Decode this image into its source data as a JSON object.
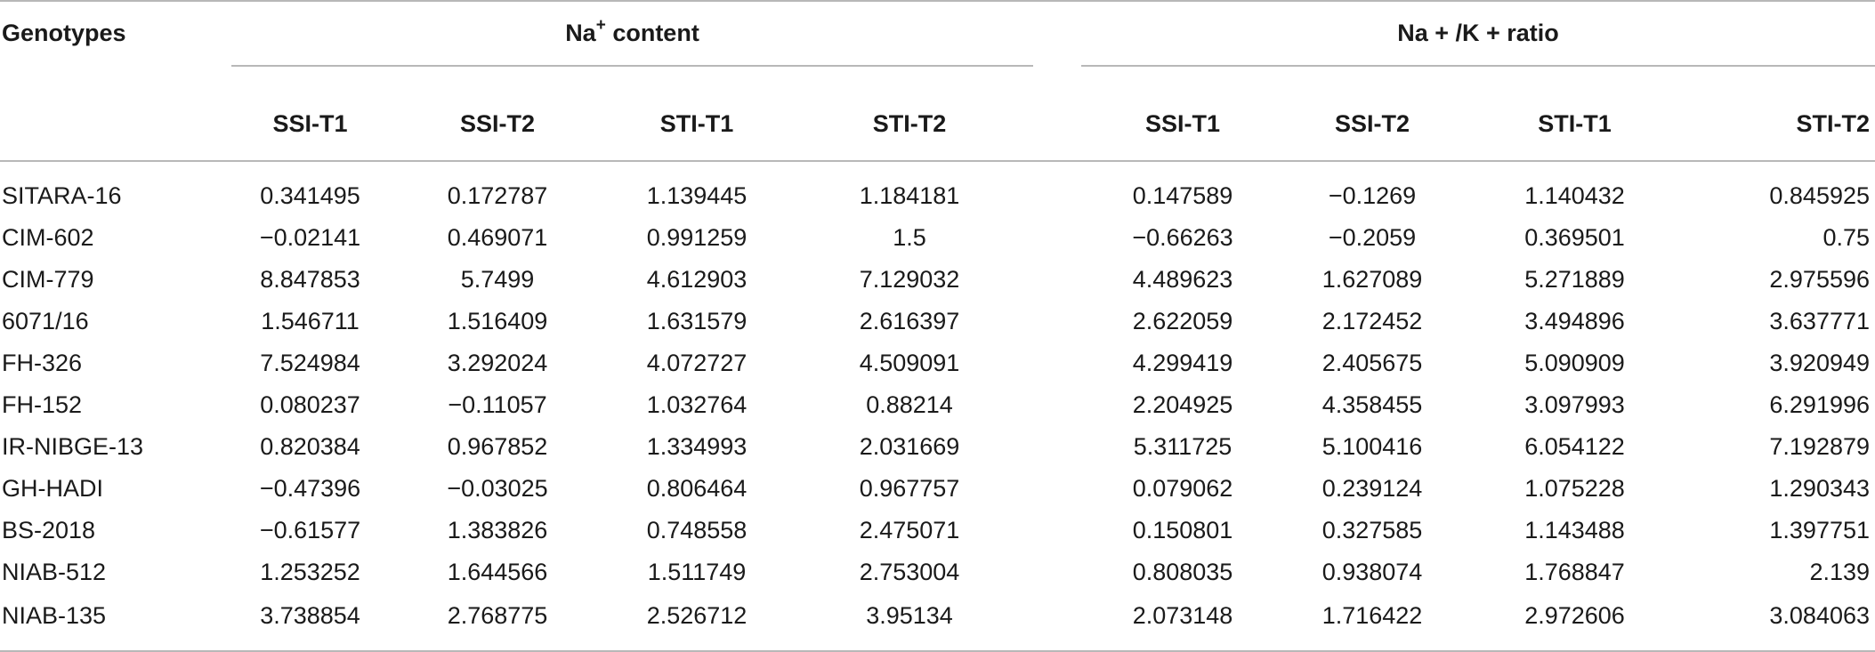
{
  "table": {
    "genotypes_label": "Genotypes",
    "group1": {
      "label_main": "Na",
      "label_sup": "+",
      "label_rest": " content"
    },
    "group2": {
      "label": "Na + /K + ratio"
    },
    "subheaders": [
      "SSI-T1",
      "SSI-T2",
      "STI-T1",
      "STI-T2",
      "SSI-T1",
      "SSI-T2",
      "STI-T1",
      "STI-T2"
    ],
    "rows": [
      {
        "genotype": "SITARA-16",
        "values": [
          "0.341495",
          "0.172787",
          "1.139445",
          "1.184181",
          "0.147589",
          "−0.1269",
          "1.140432",
          "0.845925"
        ]
      },
      {
        "genotype": "CIM-602",
        "values": [
          "−0.02141",
          "0.469071",
          "0.991259",
          "1.5",
          "−0.66263",
          "−0.2059",
          "0.369501",
          "0.75"
        ]
      },
      {
        "genotype": "CIM-779",
        "values": [
          "8.847853",
          "5.7499",
          "4.612903",
          "7.129032",
          "4.489623",
          "1.627089",
          "5.271889",
          "2.975596"
        ]
      },
      {
        "genotype": "6071/16",
        "values": [
          "1.546711",
          "1.516409",
          "1.631579",
          "2.616397",
          "2.622059",
          "2.172452",
          "3.494896",
          "3.637771"
        ]
      },
      {
        "genotype": "FH-326",
        "values": [
          "7.524984",
          "3.292024",
          "4.072727",
          "4.509091",
          "4.299419",
          "2.405675",
          "5.090909",
          "3.920949"
        ]
      },
      {
        "genotype": "FH-152",
        "values": [
          "0.080237",
          "−0.11057",
          "1.032764",
          "0.88214",
          "2.204925",
          "4.358455",
          "3.097993",
          "6.291996"
        ]
      },
      {
        "genotype": "IR-NIBGE-13",
        "values": [
          "0.820384",
          "0.967852",
          "1.334993",
          "2.031669",
          "5.311725",
          "5.100416",
          "6.054122",
          "7.192879"
        ]
      },
      {
        "genotype": "GH-HADI",
        "values": [
          "−0.47396",
          "−0.03025",
          "0.806464",
          "0.967757",
          "0.079062",
          "0.239124",
          "1.075228",
          "1.290343"
        ]
      },
      {
        "genotype": "BS-2018",
        "values": [
          "−0.61577",
          "1.383826",
          "0.748558",
          "2.475071",
          "0.150801",
          "0.327585",
          "1.143488",
          "1.397751"
        ]
      },
      {
        "genotype": "NIAB-512",
        "values": [
          "1.253252",
          "1.644566",
          "1.511749",
          "2.753004",
          "0.808035",
          "0.938074",
          "1.768847",
          "2.139"
        ]
      },
      {
        "genotype": "NIAB-135",
        "values": [
          "3.738854",
          "2.768775",
          "2.526712",
          "3.95134",
          "2.073148",
          "1.716422",
          "2.972606",
          "3.084063"
        ]
      }
    ]
  }
}
